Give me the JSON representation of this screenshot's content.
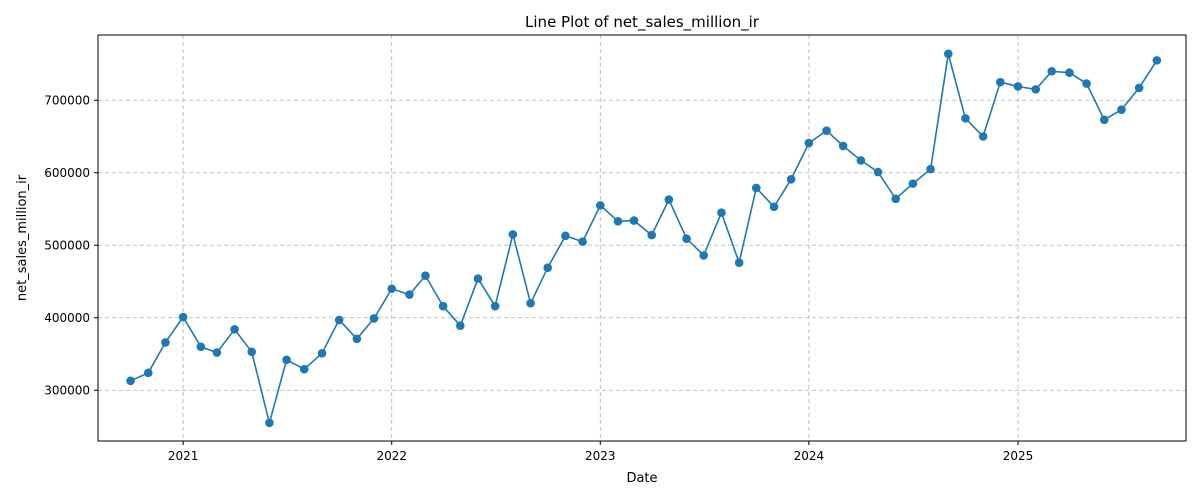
{
  "chart_data": {
    "type": "line",
    "title": "Line Plot of net_sales_million_ir",
    "xlabel": "Date",
    "ylabel": "net_sales_million_ir",
    "x_tick_labels": [
      "2021",
      "2022",
      "2023",
      "2024",
      "2025"
    ],
    "y_tick_labels": [
      "300000",
      "400000",
      "500000",
      "600000",
      "700000"
    ],
    "y_ticks": [
      300000,
      400000,
      500000,
      600000,
      700000
    ],
    "xlim": [
      "2020-08-05",
      "2025-10-22"
    ],
    "ylim": [
      230000,
      790000
    ],
    "grid": true,
    "grid_style": "dashed",
    "line_color": "#1f77b4",
    "marker": "circle",
    "x": [
      "2020-10-01",
      "2020-11-01",
      "2020-12-01",
      "2021-01-01",
      "2021-02-01",
      "2021-03-01",
      "2021-04-01",
      "2021-05-01",
      "2021-06-01",
      "2021-07-01",
      "2021-08-01",
      "2021-09-01",
      "2021-10-01",
      "2021-11-01",
      "2021-12-01",
      "2022-01-01",
      "2022-02-01",
      "2022-03-01",
      "2022-04-01",
      "2022-05-01",
      "2022-06-01",
      "2022-07-01",
      "2022-08-01",
      "2022-09-01",
      "2022-10-01",
      "2022-11-01",
      "2022-12-01",
      "2023-01-01",
      "2023-02-01",
      "2023-03-01",
      "2023-04-01",
      "2023-05-01",
      "2023-06-01",
      "2023-07-01",
      "2023-08-01",
      "2023-09-01",
      "2023-10-01",
      "2023-11-01",
      "2023-12-01",
      "2024-01-01",
      "2024-02-01",
      "2024-03-01",
      "2024-04-01",
      "2024-05-01",
      "2024-06-01",
      "2024-07-01",
      "2024-08-01",
      "2024-09-01",
      "2024-10-01",
      "2024-11-01",
      "2024-12-01",
      "2025-01-01",
      "2025-02-01",
      "2025-03-01",
      "2025-04-01",
      "2025-05-01",
      "2025-06-01",
      "2025-07-01",
      "2025-08-01",
      "2025-09-01"
    ],
    "values": [
      313000,
      324000,
      366000,
      401000,
      360000,
      352000,
      384000,
      353000,
      255000,
      342000,
      329000,
      351000,
      397000,
      371000,
      399000,
      440000,
      432000,
      458000,
      416000,
      389000,
      454000,
      416000,
      515000,
      420000,
      469000,
      513000,
      505000,
      555000,
      533000,
      534000,
      514000,
      563000,
      509000,
      486000,
      545000,
      476000,
      579000,
      553000,
      591000,
      641000,
      658000,
      637000,
      617000,
      601000,
      564000,
      585000,
      605000,
      764000,
      675000,
      650000,
      725000,
      719000,
      715000,
      740000,
      738000,
      723000,
      673000,
      687000,
      717000,
      755000
    ]
  }
}
